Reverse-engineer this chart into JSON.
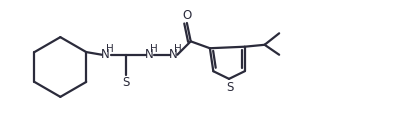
{
  "bg_color": "#ffffff",
  "line_color": "#2b2b3b",
  "line_width": 1.6,
  "font_size": 8.5,
  "figsize": [
    4.04,
    1.34
  ],
  "dpi": 100,
  "xlim": [
    0,
    10.5
  ],
  "ylim": [
    0,
    3.5
  ]
}
